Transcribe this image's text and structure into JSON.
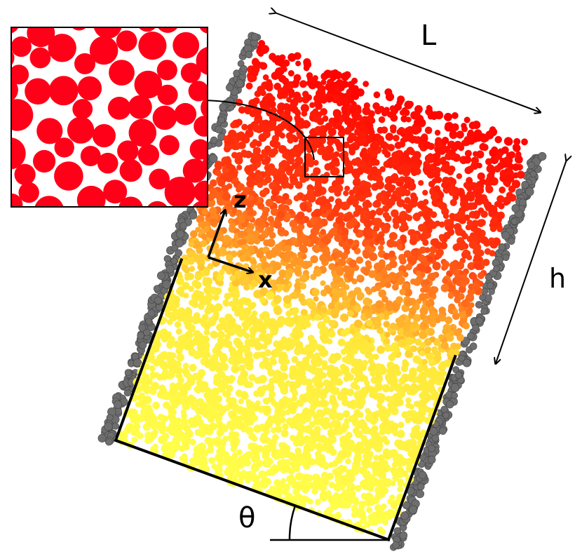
{
  "labels": {
    "length": "L",
    "height": "h",
    "z_axis": "z",
    "x_axis": "x",
    "angle": "θ"
  },
  "colors": {
    "wall_particles": "#6e6e6e",
    "bottom_particles": "#ffff40",
    "middle_particles": "#ff9a20",
    "top_particles": "#ff0000",
    "inset_particles": "#ff0018",
    "lines": "#000000"
  },
  "color_by_height": [
    {
      "fraction": 0.0,
      "color": "#ffff4a"
    },
    {
      "fraction": 0.42,
      "color": "#ffe83a"
    },
    {
      "fraction": 0.52,
      "color": "#ffa028"
    },
    {
      "fraction": 0.68,
      "color": "#ff3c10"
    },
    {
      "fraction": 1.0,
      "color": "#ff0000"
    }
  ]
}
